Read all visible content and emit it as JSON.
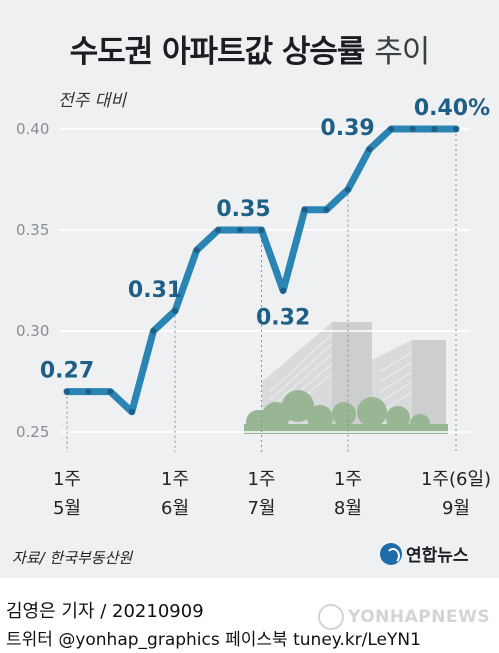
{
  "title_main": "수도권 아파트값 상승률",
  "title_suffix": "추이",
  "unit_label": "전주 대비",
  "chart_data": {
    "type": "line",
    "y_ticks": [
      "0.40",
      "0.35",
      "0.30",
      "0.25"
    ],
    "ylim": [
      0.25,
      0.4
    ],
    "x": [
      0,
      1,
      2,
      3,
      4,
      5,
      6,
      7,
      8,
      9,
      10,
      11,
      12,
      13,
      14,
      15,
      16,
      17,
      18
    ],
    "values": [
      0.27,
      0.27,
      0.27,
      0.26,
      0.3,
      0.31,
      0.34,
      0.35,
      0.35,
      0.35,
      0.32,
      0.36,
      0.36,
      0.37,
      0.39,
      0.4,
      0.4,
      0.4,
      0.4
    ],
    "month_ticks": [
      {
        "index": 0,
        "week": "1주",
        "month": "5월"
      },
      {
        "index": 5,
        "week": "1주",
        "month": "6월"
      },
      {
        "index": 9,
        "week": "1주",
        "month": "7월"
      },
      {
        "index": 13,
        "week": "1주",
        "month": "8월"
      },
      {
        "index": 18,
        "week": "1주(6일)",
        "month": "9월"
      }
    ],
    "data_labels": [
      {
        "index": 0,
        "text": "0.27"
      },
      {
        "index": 5,
        "text": "0.31"
      },
      {
        "index": 9,
        "text": "0.35"
      },
      {
        "index": 10,
        "text": "0.32"
      },
      {
        "index": 14,
        "text": "0.39"
      },
      {
        "index": 18,
        "text": "0.40%"
      }
    ],
    "line_color": "#2a85b5",
    "marker_color": "#1f5f86",
    "grid": true
  },
  "source": "자료/ 한국부동산원",
  "logo_text": "연합뉴스",
  "byline": "김영은 기자 / 20210909",
  "social": "트위터 @yonhap_graphics  페이스북 tuney.kr/LeYN1",
  "watermark": "YONHAPNEWS"
}
